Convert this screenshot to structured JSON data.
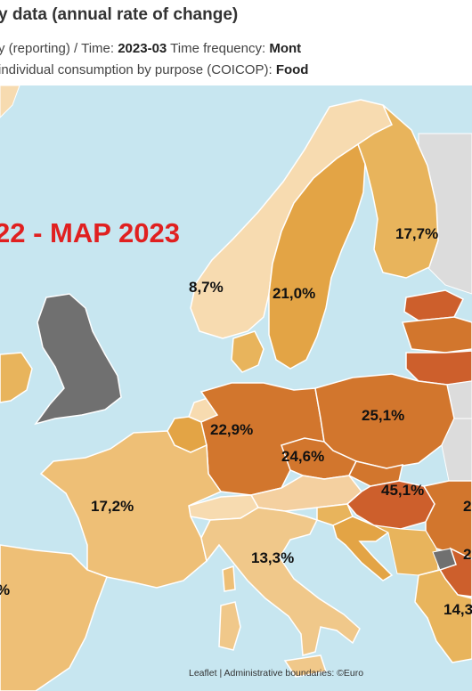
{
  "header": {
    "title": "y data (annual rate of change)",
    "line1_prefix": "y (reporting)  / Time: ",
    "time_value": "2023-03",
    "line1_mid": "  Time frequency: ",
    "freq_value": "Mont",
    "line2_prefix": "individual consumption by purpose (COICOP): ",
    "coicop_value": "Food"
  },
  "overlay_title": "22 - MAP 2023",
  "regions": {
    "norway": "8,7%",
    "sweden": "21,0%",
    "finland": "17,7%",
    "germany": "22,9%",
    "poland": "25,1%",
    "czechia": "24,6%",
    "hungary": "45,1%",
    "france": "17,2%",
    "italy": "13,3%",
    "iberia": "%",
    "romania": "2",
    "bulgaria": "2",
    "greece": "14,3"
  },
  "attribution": "Leaflet | Administrative boundaries: ©Euro",
  "colors": {
    "sea": "#c7e6f0",
    "no_data": "#707070",
    "outside": "#dcdcdc",
    "light": "#f7dbb0",
    "mid": "#e8b45c",
    "orange": "#e39a3e",
    "dark": "#d2762d",
    "darkest": "#cd5f2c",
    "title_red": "#e02020"
  }
}
